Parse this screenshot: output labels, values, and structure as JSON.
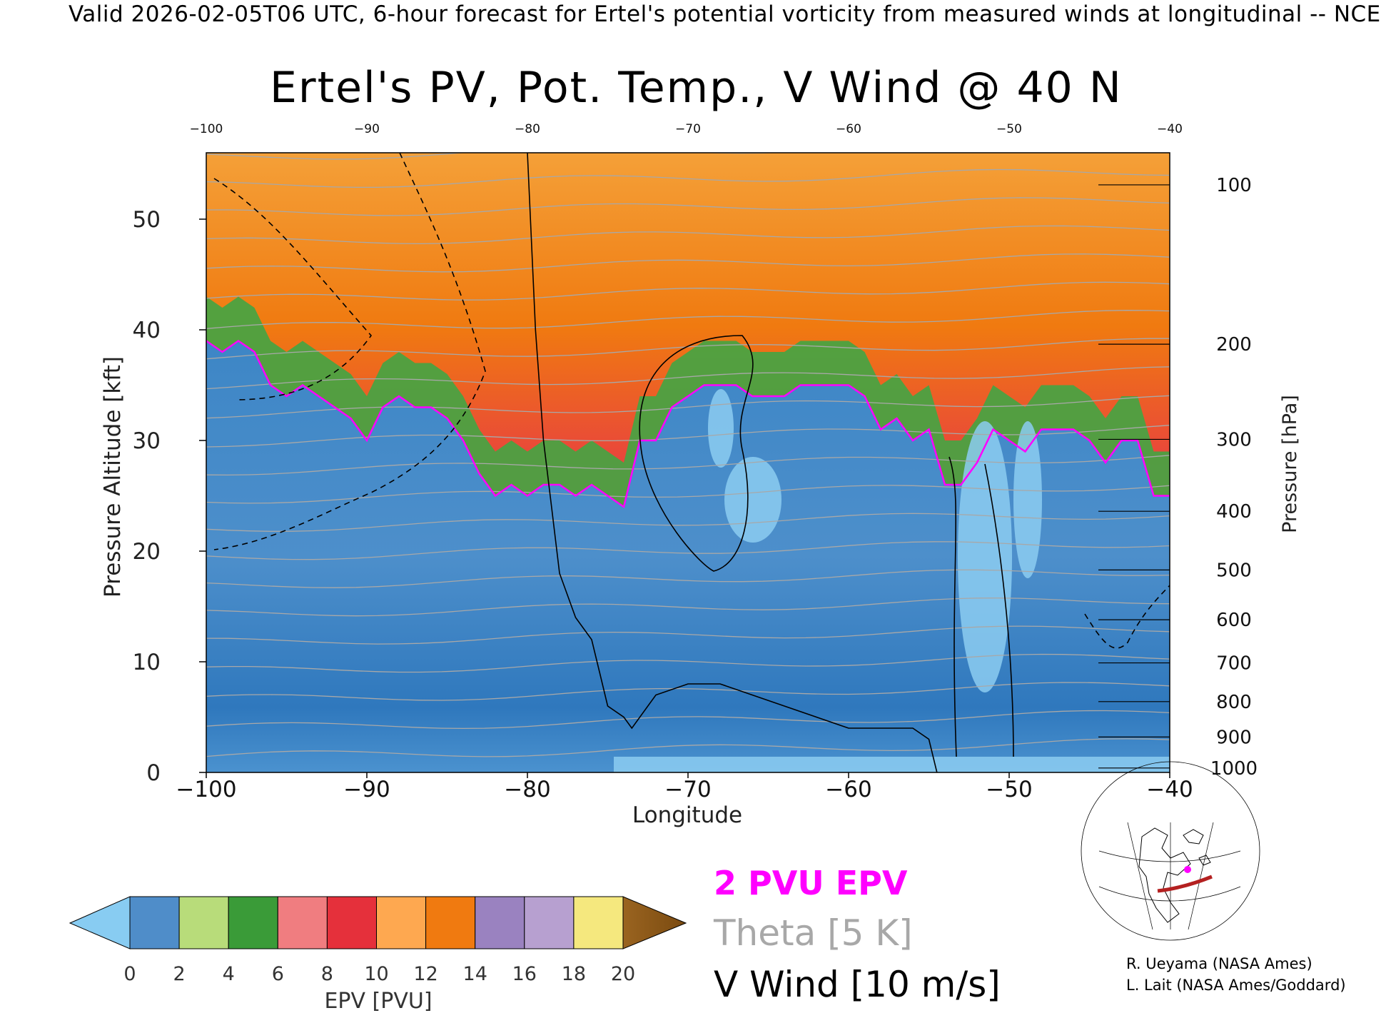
{
  "header": "Valid 2026-02-05T06 UTC, 6-hour forecast for Ertel's potential vorticity from measured winds at longitudinal -- NCE",
  "title": "Ertel's PV, Pot. Temp., V Wind @ 40 N",
  "legend": {
    "pvu_label": "2 PVU EPV",
    "theta_label": "Theta [5 K]",
    "wind_label": "V Wind [10 m/s]",
    "pvu_color": "#ff00ff",
    "theta_color": "#a8a8a8",
    "wind_color": "#000000"
  },
  "credits": [
    "R. Ueyama (NASA Ames)",
    "L. Lait (NASA Ames/Goddard)"
  ],
  "colorbar": {
    "label": "EPV [PVU]",
    "ticks": [
      "0",
      "2",
      "4",
      "6",
      "8",
      "10",
      "12",
      "14",
      "16",
      "18",
      "20"
    ],
    "colors": [
      "#4f8dc9",
      "#b8dc7a",
      "#3a9b38",
      "#f07d80",
      "#e5303b",
      "#fea850",
      "#f07a10",
      "#9a82c0",
      "#b7a0d0",
      "#f5e87e"
    ],
    "below_color": "#88ccf2",
    "above_color": "#8a5514"
  },
  "chart_data": {
    "type": "heatmap",
    "title": "Ertel's PV, Pot. Temp., V Wind @ 40 N",
    "xlabel": "Longitude",
    "ylabel_left": "Pressure Altitude [kft]",
    "ylabel_right": "Pressure [hPa]",
    "xlim": [
      -100,
      -40
    ],
    "ylim": [
      0,
      56
    ],
    "x_ticks": [
      "−100",
      "−90",
      "−80",
      "−70",
      "−60",
      "−50",
      "−40"
    ],
    "x_tick_values": [
      -100,
      -90,
      -80,
      -70,
      -60,
      -50,
      -40
    ],
    "top_ticks": [
      "−100",
      "−90",
      "−80",
      "−70",
      "−60",
      "−50",
      "−40"
    ],
    "y_ticks": [
      "0",
      "10",
      "20",
      "30",
      "40",
      "50"
    ],
    "y_tick_values": [
      0,
      10,
      20,
      30,
      40,
      50
    ],
    "pressure_ticks": [
      {
        "label": "100",
        "alt": 53.1
      },
      {
        "label": "200",
        "alt": 38.7
      },
      {
        "label": "300",
        "alt": 30.1
      },
      {
        "label": "400",
        "alt": 23.6
      },
      {
        "label": "500",
        "alt": 18.3
      },
      {
        "label": "600",
        "alt": 13.8
      },
      {
        "label": "700",
        "alt": 9.9
      },
      {
        "label": "800",
        "alt": 6.4
      },
      {
        "label": "900",
        "alt": 3.2
      },
      {
        "label": "1000",
        "alt": 0.4
      }
    ],
    "tropopause_2pvu": {
      "lon": [
        -100,
        -99,
        -98,
        -97,
        -96,
        -95,
        -94,
        -93,
        -92,
        -91,
        -90,
        -89,
        -88,
        -87,
        -86,
        -85,
        -84,
        -83,
        -82,
        -81,
        -80,
        -79,
        -78,
        -77,
        -76,
        -75,
        -74,
        -73,
        -72,
        -71,
        -70,
        -69,
        -68,
        -67,
        -66,
        -65,
        -64,
        -63,
        -62,
        -61,
        -60,
        -59,
        -58,
        -57,
        -56,
        -55,
        -54,
        -53,
        -52,
        -51,
        -50,
        -49,
        -48,
        -47,
        -46,
        -45,
        -44,
        -43,
        -42,
        -41,
        -40
      ],
      "alt": [
        39,
        38,
        39,
        38,
        35,
        34,
        35,
        34,
        33,
        32,
        30,
        33,
        34,
        33,
        33,
        32,
        30,
        27,
        25,
        26,
        25,
        26,
        26,
        25,
        26,
        25,
        24,
        30,
        30,
        33,
        34,
        35,
        35,
        35,
        34,
        34,
        34,
        35,
        35,
        35,
        35,
        34,
        31,
        32,
        30,
        31,
        26,
        26,
        28,
        31,
        30,
        29,
        31,
        31,
        31,
        30,
        28,
        30,
        30,
        25,
        25
      ]
    },
    "v_wind_zero_line": {
      "lon": [
        -80,
        -79.5,
        -79,
        -78.5,
        -78,
        -77,
        -76,
        -75.5,
        -75,
        -74,
        -73.5,
        -72,
        -70,
        -68,
        -66,
        -64,
        -62,
        -60,
        -58,
        -56,
        -55,
        -54.5
      ],
      "alt": [
        56,
        40,
        30,
        24,
        18,
        14,
        12,
        9,
        6,
        5,
        4,
        7,
        8,
        8,
        7,
        6,
        5,
        4,
        4,
        4,
        3,
        0
      ]
    }
  }
}
